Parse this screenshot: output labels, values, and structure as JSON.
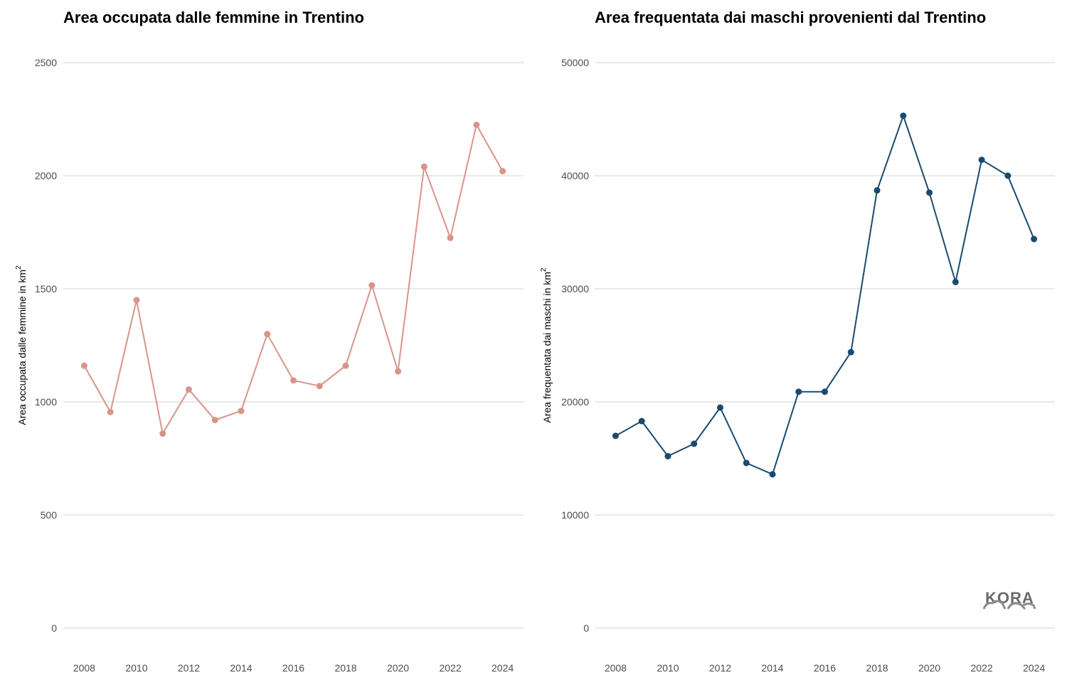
{
  "logo": {
    "text": "KORA"
  },
  "chart_data": [
    {
      "type": "line",
      "title": "Area occupata dalle femmine in Trentino",
      "ylabel": "Area occupata dalle femmine in km",
      "ylabel_superscript": "2",
      "xlabel": "",
      "color": "#d9948a",
      "ylim": [
        0,
        2500
      ],
      "yticks": [
        0,
        500,
        1000,
        1500,
        2000,
        2500
      ],
      "xticks": [
        2008,
        2010,
        2012,
        2014,
        2016,
        2018,
        2020,
        2022,
        2024
      ],
      "x": [
        2008,
        2009,
        2010,
        2011,
        2012,
        2013,
        2014,
        2015,
        2016,
        2017,
        2018,
        2019,
        2020,
        2021,
        2022,
        2023,
        2024
      ],
      "values": [
        1160,
        955,
        1450,
        860,
        1055,
        920,
        960,
        1300,
        1095,
        1070,
        1160,
        1515,
        1135,
        2040,
        1725,
        2225,
        2020
      ],
      "grid": true
    },
    {
      "type": "line",
      "title": "Area frequentata dai maschi provenienti dal Trentino",
      "ylabel": "Area frequentata dai maschi in  km",
      "ylabel_superscript": "2",
      "xlabel": "",
      "color": "#1a4a6e",
      "ylim": [
        0,
        50000
      ],
      "yticks": [
        0,
        10000,
        20000,
        30000,
        40000,
        50000
      ],
      "xticks": [
        2008,
        2010,
        2012,
        2014,
        2016,
        2018,
        2020,
        2022,
        2024
      ],
      "x": [
        2008,
        2009,
        2010,
        2011,
        2012,
        2013,
        2014,
        2015,
        2016,
        2017,
        2018,
        2019,
        2020,
        2021,
        2022,
        2023,
        2024
      ],
      "values": [
        17000,
        18300,
        15200,
        16300,
        19500,
        14600,
        13600,
        20900,
        20900,
        24400,
        38700,
        45300,
        38500,
        30600,
        41400,
        40000,
        34400
      ],
      "grid": true
    }
  ]
}
